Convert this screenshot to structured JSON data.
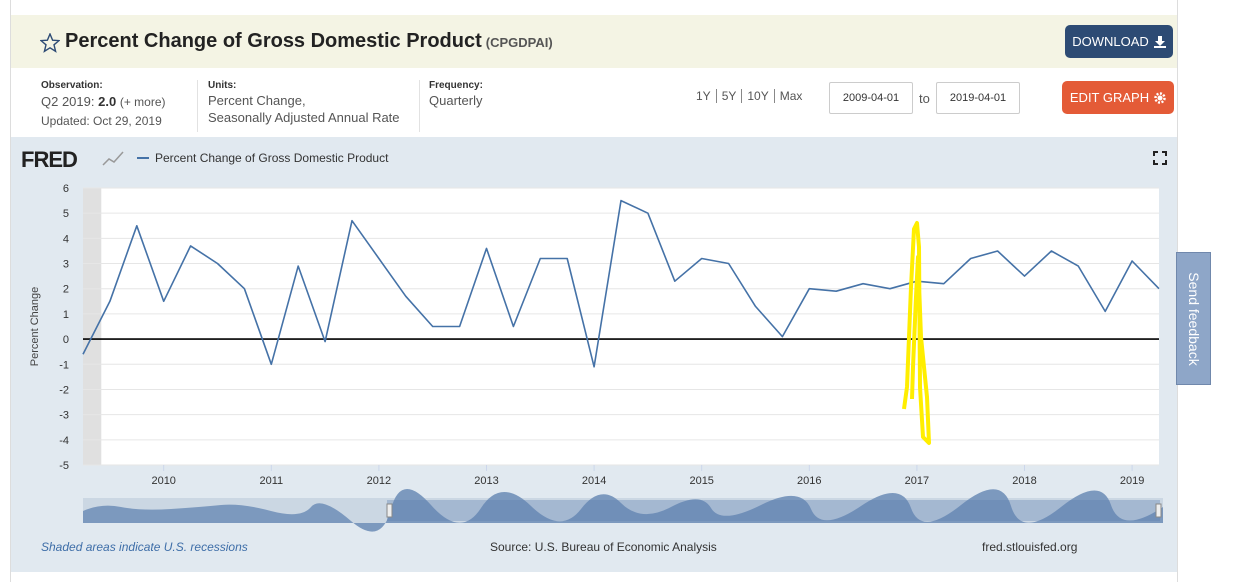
{
  "header": {
    "title": "Percent Change of Gross Domestic Product",
    "series_id": "(CPGDPAI)",
    "download": "DOWNLOAD"
  },
  "info": {
    "observation_label": "Observation:",
    "observation_period": "Q2 2019:",
    "observation_value": "2.0",
    "observation_more": "(+ more)",
    "updated": "Updated: Oct 29, 2019",
    "units_label": "Units:",
    "units_line1": "Percent Change,",
    "units_line2": "Seasonally Adjusted Annual Rate",
    "frequency_label": "Frequency:",
    "frequency": "Quarterly",
    "ranges": [
      "1Y",
      "5Y",
      "10Y",
      "Max"
    ],
    "date_from": "2009-04-01",
    "date_to_word": "to",
    "date_to": "2019-04-01",
    "edit_graph": "EDIT GRAPH"
  },
  "chart_data": {
    "type": "line",
    "logo": "FRED",
    "y_label": "Percent Change",
    "x": [
      2009.25,
      2009.5,
      2009.75,
      2010,
      2010.25,
      2010.5,
      2010.75,
      2011,
      2011.25,
      2011.5,
      2011.75,
      2012,
      2012.25,
      2012.5,
      2012.75,
      2013,
      2013.25,
      2013.5,
      2013.75,
      2014,
      2014.25,
      2014.5,
      2014.75,
      2015,
      2015.25,
      2015.5,
      2015.75,
      2016,
      2016.25,
      2016.5,
      2016.75,
      2017,
      2017.25,
      2017.5,
      2017.75,
      2018,
      2018.25,
      2018.5,
      2018.75,
      2019,
      2019.25
    ],
    "series": [
      {
        "name": "Percent Change of Gross Domestic Product",
        "color": "#4572a7",
        "values": [
          -0.6,
          1.5,
          4.5,
          1.5,
          3.7,
          3.0,
          2.0,
          -1.0,
          2.9,
          -0.1,
          4.7,
          3.2,
          1.7,
          0.5,
          0.5,
          3.6,
          0.5,
          3.2,
          3.2,
          -1.1,
          5.5,
          5.0,
          2.3,
          3.2,
          3.0,
          1.3,
          0.1,
          2.0,
          1.9,
          2.2,
          2.0,
          2.3,
          2.2,
          3.2,
          3.5,
          2.5,
          3.5,
          2.9,
          1.1,
          3.1,
          2.0
        ]
      }
    ],
    "recessions": [
      [
        2009.25,
        2009.42
      ]
    ],
    "xlim": [
      2009.25,
      2019.25
    ],
    "xticks": [
      2010,
      2011,
      2012,
      2013,
      2014,
      2015,
      2016,
      2017,
      2018,
      2019
    ],
    "ylim": [
      -5,
      6
    ],
    "yticks": [
      -5,
      -4,
      -3,
      -2,
      -1,
      0,
      1,
      2,
      3,
      4,
      5,
      6
    ],
    "grid": true,
    "recession_note": "Shaded areas indicate U.S. recessions",
    "source": "Source: U.S. Bureau of Economic Analysis",
    "site": "fred.stlouisfed.org"
  },
  "feedback": "Send feedback"
}
